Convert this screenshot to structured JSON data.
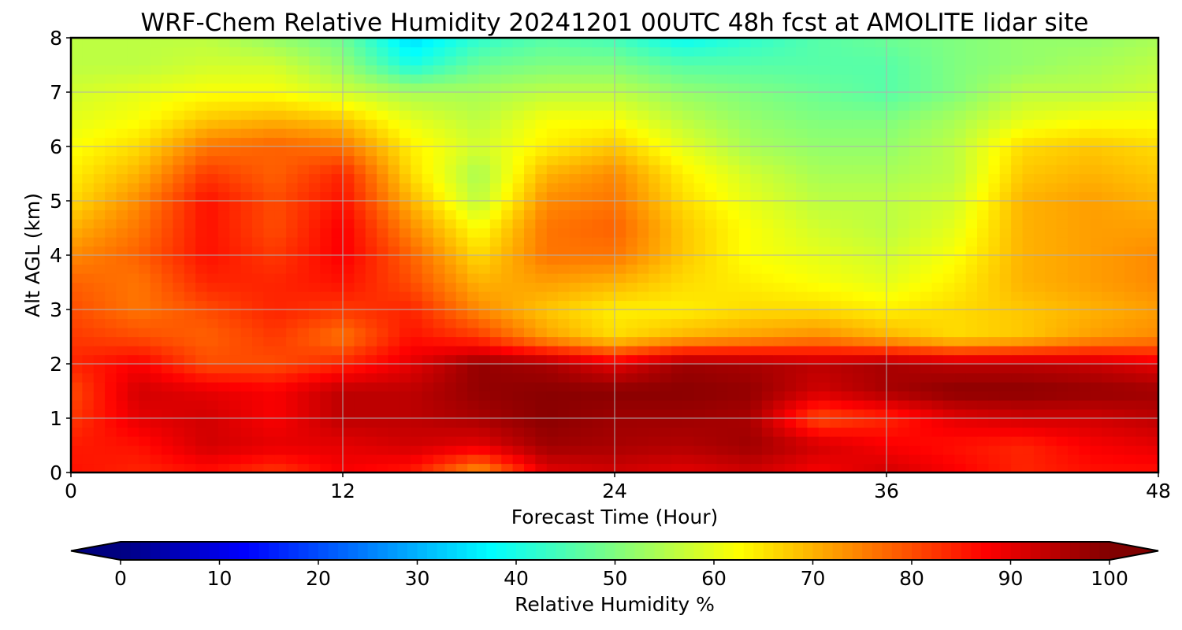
{
  "chart_data": {
    "type": "heatmap",
    "title": "WRF-Chem Relative Humidity 20241201 00UTC 48h fcst at AMOLITE lidar site",
    "xlabel": "Forecast Time (Hour)",
    "ylabel": "Alt AGL (km)",
    "xlim": [
      0,
      48
    ],
    "ylim": [
      0,
      8
    ],
    "xticks": [
      "0",
      "12",
      "24",
      "36",
      "48"
    ],
    "yticks": [
      "0",
      "1",
      "2",
      "3",
      "4",
      "5",
      "6",
      "7",
      "8"
    ],
    "grid": true,
    "x": [
      0,
      3,
      6,
      9,
      12,
      15,
      18,
      21,
      24,
      27,
      30,
      33,
      36,
      39,
      42,
      45,
      48
    ],
    "y": [
      0,
      0.5,
      1,
      1.5,
      2,
      2.5,
      3,
      3.5,
      4,
      4.5,
      5,
      5.5,
      6,
      6.5,
      7,
      7.5,
      8
    ],
    "z": [
      [
        86,
        84,
        86,
        82,
        88,
        85,
        72,
        90,
        92,
        90,
        92,
        88,
        92,
        88,
        84,
        86,
        86
      ],
      [
        85,
        86,
        92,
        90,
        90,
        92,
        90,
        97,
        96,
        95,
        97,
        92,
        88,
        86,
        84,
        88,
        90
      ],
      [
        82,
        90,
        92,
        88,
        94,
        94,
        96,
        99,
        97,
        97,
        96,
        80,
        84,
        90,
        92,
        92,
        94
      ],
      [
        80,
        92,
        90,
        88,
        94,
        94,
        98,
        99,
        99,
        99,
        98,
        92,
        96,
        99,
        99,
        98,
        97
      ],
      [
        84,
        88,
        80,
        80,
        84,
        90,
        98,
        96,
        90,
        97,
        96,
        94,
        96,
        94,
        94,
        93,
        90
      ],
      [
        82,
        80,
        78,
        82,
        76,
        86,
        82,
        72,
        66,
        70,
        72,
        74,
        70,
        66,
        68,
        72,
        74
      ],
      [
        80,
        76,
        80,
        84,
        82,
        84,
        74,
        68,
        64,
        64,
        66,
        66,
        64,
        66,
        68,
        70,
        72
      ],
      [
        78,
        76,
        84,
        84,
        86,
        80,
        70,
        72,
        70,
        66,
        64,
        62,
        60,
        64,
        70,
        72,
        74
      ],
      [
        74,
        78,
        86,
        82,
        88,
        78,
        66,
        76,
        76,
        68,
        62,
        60,
        58,
        62,
        70,
        72,
        74
      ],
      [
        70,
        76,
        86,
        80,
        88,
        74,
        62,
        76,
        78,
        68,
        62,
        58,
        56,
        60,
        70,
        72,
        72
      ],
      [
        66,
        74,
        86,
        80,
        86,
        70,
        56,
        74,
        76,
        66,
        60,
        56,
        56,
        58,
        70,
        72,
        70
      ],
      [
        64,
        70,
        82,
        78,
        84,
        66,
        54,
        70,
        74,
        64,
        58,
        54,
        54,
        56,
        68,
        70,
        68
      ],
      [
        62,
        66,
        76,
        78,
        76,
        64,
        58,
        64,
        68,
        60,
        54,
        52,
        52,
        56,
        66,
        68,
        66
      ],
      [
        60,
        62,
        68,
        70,
        68,
        60,
        56,
        62,
        62,
        56,
        52,
        50,
        50,
        54,
        60,
        62,
        62
      ],
      [
        58,
        60,
        62,
        62,
        58,
        54,
        54,
        56,
        56,
        52,
        50,
        48,
        46,
        50,
        56,
        56,
        58
      ],
      [
        56,
        56,
        58,
        58,
        52,
        40,
        48,
        50,
        50,
        46,
        46,
        46,
        46,
        50,
        52,
        54,
        56
      ],
      [
        56,
        56,
        56,
        52,
        48,
        34,
        42,
        46,
        44,
        38,
        42,
        46,
        48,
        50,
        52,
        52,
        54
      ]
    ],
    "colorbar": {
      "label": "Relative Humidity %",
      "ticks": [
        "0",
        "10",
        "20",
        "30",
        "40",
        "50",
        "60",
        "70",
        "80",
        "90",
        "100"
      ],
      "min": 0,
      "max": 100,
      "extend": "both",
      "colormap": "jet"
    }
  }
}
